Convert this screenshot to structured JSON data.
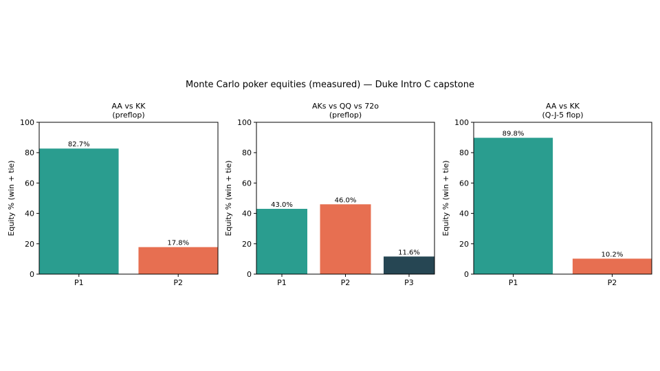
{
  "suptitle": "Monte Carlo poker equities (measured) — Duke Intro C capstone",
  "colors": {
    "p1": "#2a9d8f",
    "p2": "#e76f51",
    "p3": "#264653",
    "axis": "#000000"
  },
  "chart_data": [
    {
      "type": "bar",
      "title": "AA vs KK",
      "subtitle": "(preflop)",
      "categories": [
        "P1",
        "P2"
      ],
      "values": [
        82.7,
        17.8
      ],
      "value_labels": [
        "82.7%",
        "17.8%"
      ],
      "ylabel": "Equity % (win + tie)",
      "ylim": [
        0,
        100
      ],
      "yticks": [
        0,
        20,
        40,
        60,
        80,
        100
      ],
      "grid": false
    },
    {
      "type": "bar",
      "title": "AKs vs QQ vs 72o",
      "subtitle": "(preflop)",
      "categories": [
        "P1",
        "P2",
        "P3"
      ],
      "values": [
        43.0,
        46.0,
        11.6
      ],
      "value_labels": [
        "43.0%",
        "46.0%",
        "11.6%"
      ],
      "ylabel": "Equity % (win + tie)",
      "ylim": [
        0,
        100
      ],
      "yticks": [
        0,
        20,
        40,
        60,
        80,
        100
      ],
      "grid": false
    },
    {
      "type": "bar",
      "title": "AA vs KK",
      "subtitle": "(Q-J-5 flop)",
      "categories": [
        "P1",
        "P2"
      ],
      "values": [
        89.8,
        10.2
      ],
      "value_labels": [
        "89.8%",
        "10.2%"
      ],
      "ylabel": "Equity % (win + tie)",
      "ylim": [
        0,
        100
      ],
      "yticks": [
        0,
        20,
        40,
        60,
        80,
        100
      ],
      "grid": false
    }
  ]
}
